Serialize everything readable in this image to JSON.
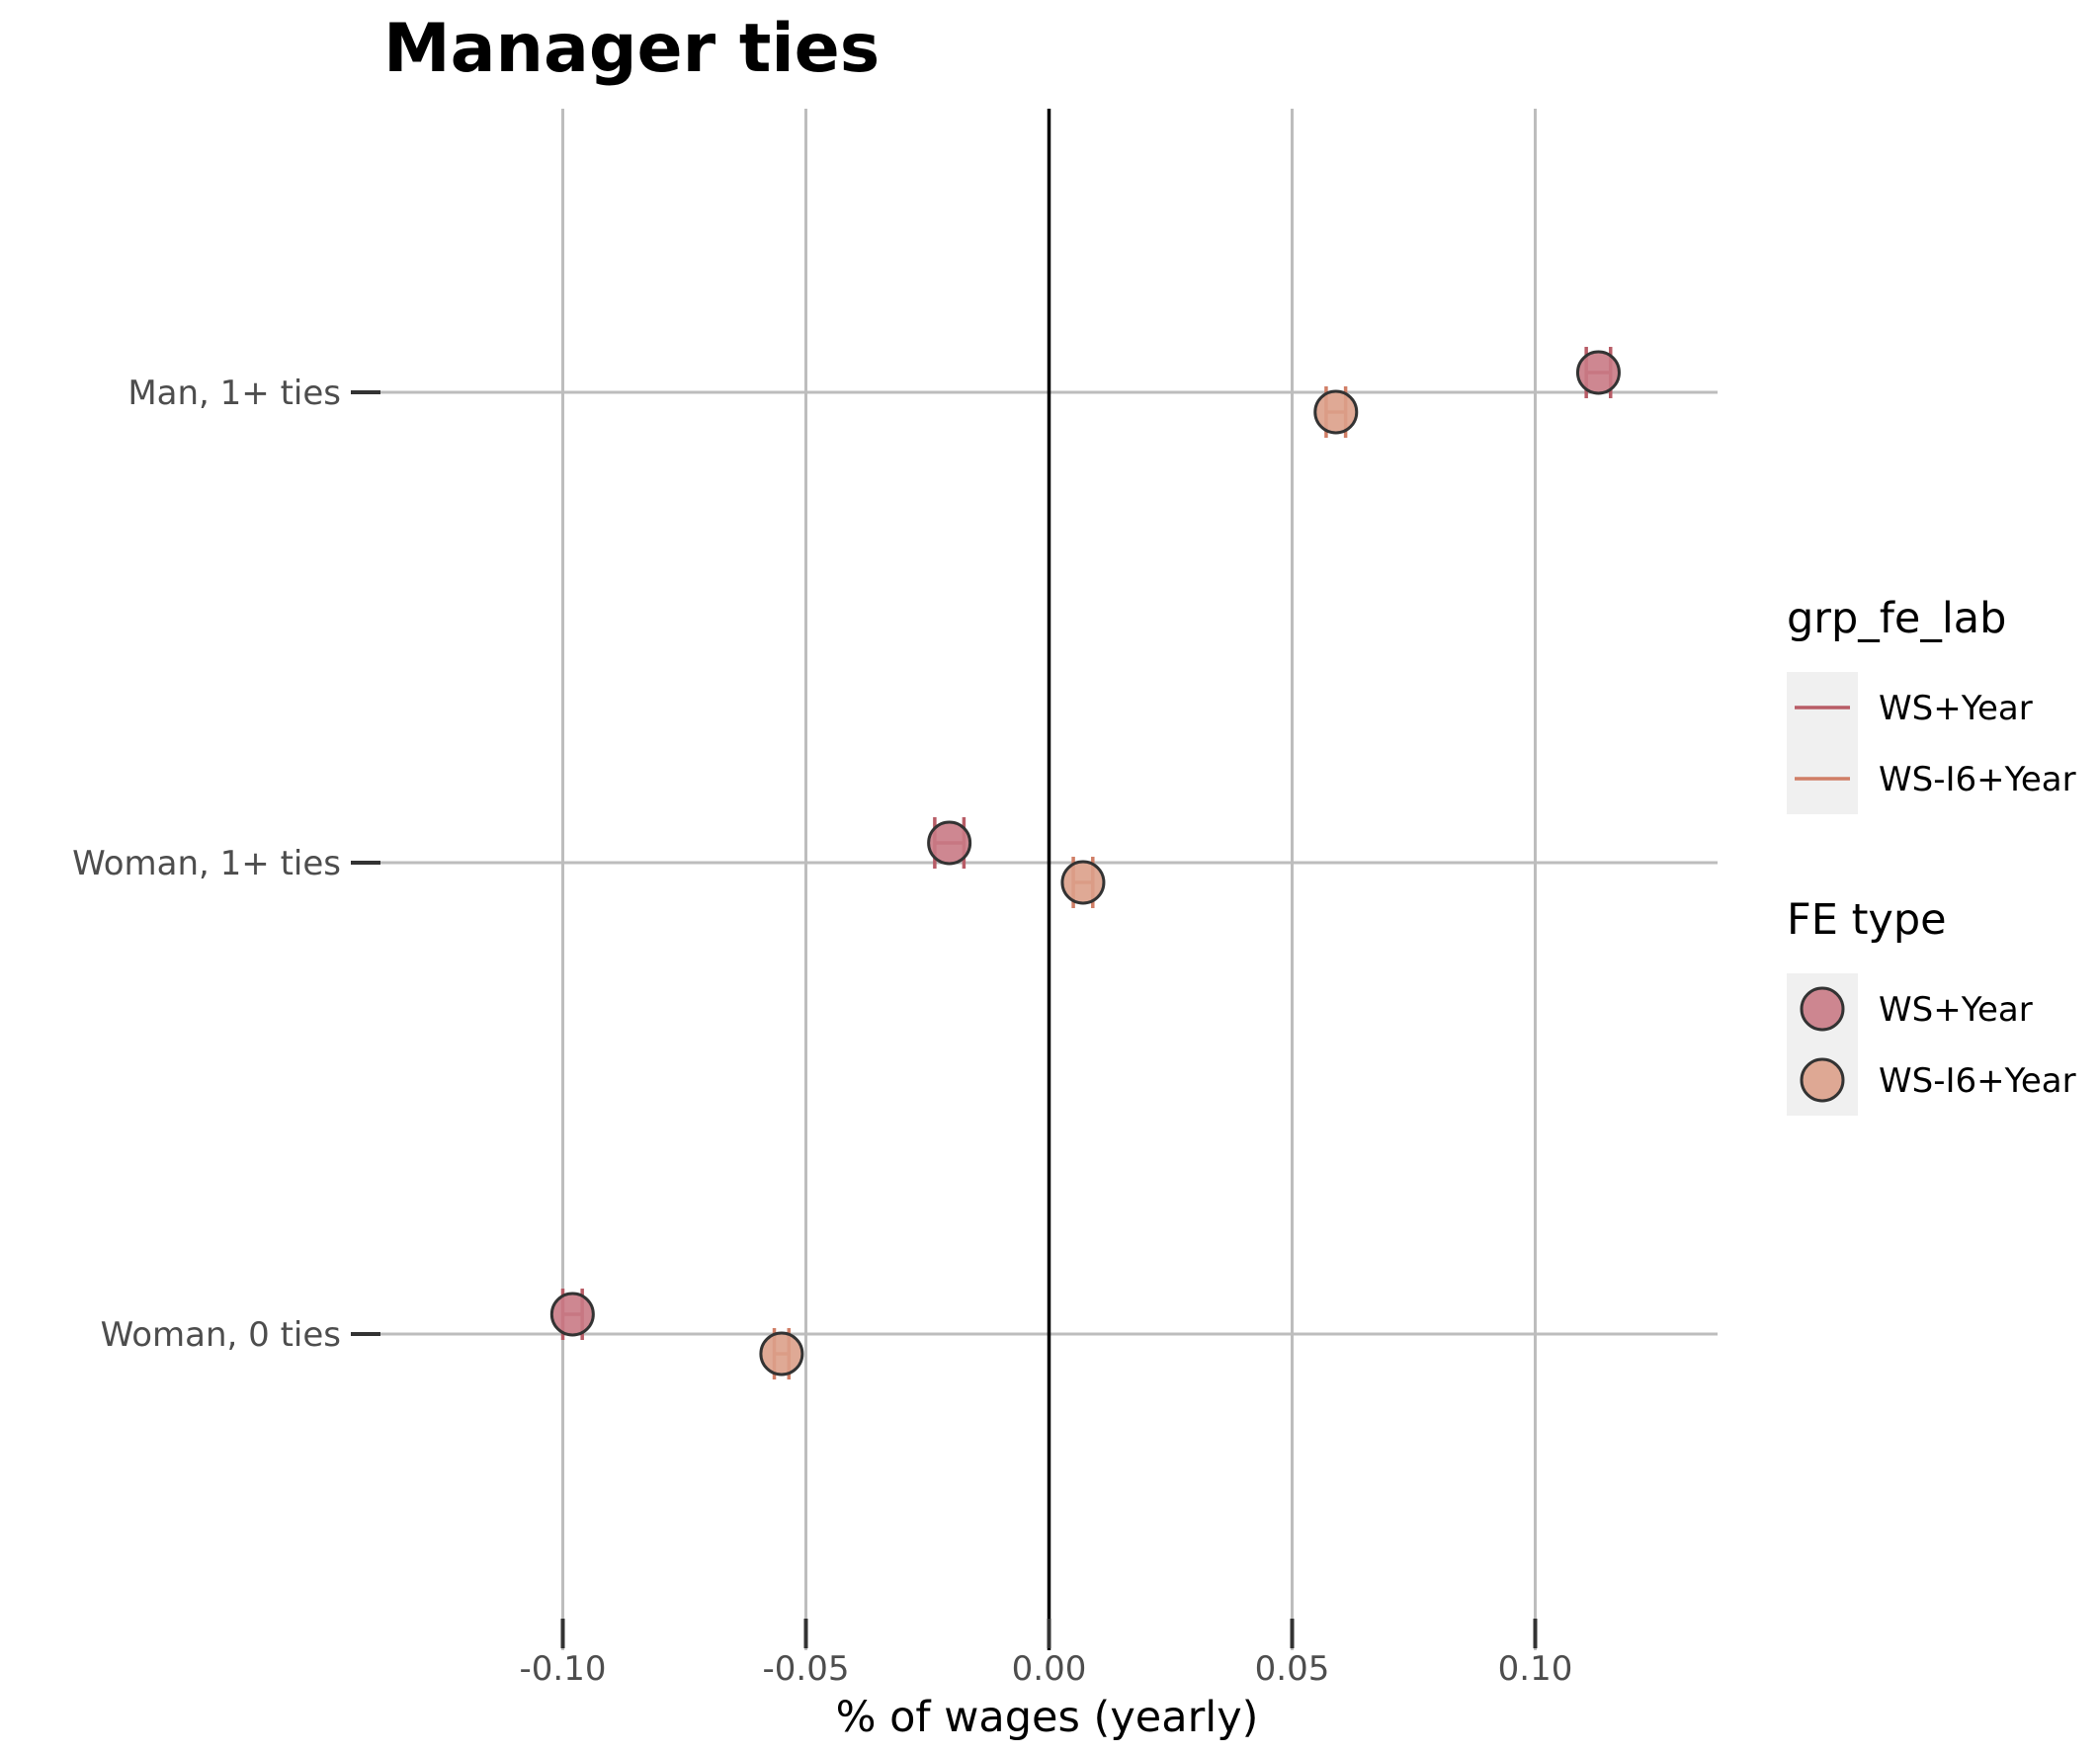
{
  "chart_data": {
    "type": "scatter",
    "title": "Manager ties",
    "xlabel": "% of wages (yearly)",
    "ylabel": "",
    "xlim": [
      -0.1375,
      0.1375
    ],
    "x_ticks": [
      -0.1,
      -0.05,
      0.0,
      0.05,
      0.1
    ],
    "x_tick_labels": [
      "-0.10",
      "-0.05",
      "0.00",
      "0.05",
      "0.10"
    ],
    "vline_x": 0,
    "grid": true,
    "categories": [
      "Man, 1+ ties",
      "Woman, 1+ ties",
      "Woman, 0 ties"
    ],
    "series": [
      {
        "name": "WS+Year",
        "fill": "#C97A85",
        "line": "#B85C66",
        "values": [
          0.113,
          -0.0205,
          -0.098
        ],
        "ci_low": [
          0.1105,
          -0.0235,
          -0.1
        ],
        "ci_high": [
          0.1155,
          -0.0175,
          -0.096
        ]
      },
      {
        "name": "WS-I6+Year",
        "fill": "#DBA08A",
        "line": "#D07E66",
        "values": [
          0.059,
          0.007,
          -0.055
        ],
        "ci_low": [
          0.057,
          0.005,
          -0.0565
        ],
        "ci_high": [
          0.061,
          0.009,
          -0.0535
        ]
      }
    ],
    "legends": [
      {
        "title": "grp_fe_lab",
        "kind": "line",
        "entries": [
          "WS+Year",
          "WS-I6+Year"
        ]
      },
      {
        "title": "FE type",
        "kind": "point",
        "entries": [
          "WS+Year",
          "WS-I6+Year"
        ]
      }
    ],
    "legend_position": "right"
  }
}
